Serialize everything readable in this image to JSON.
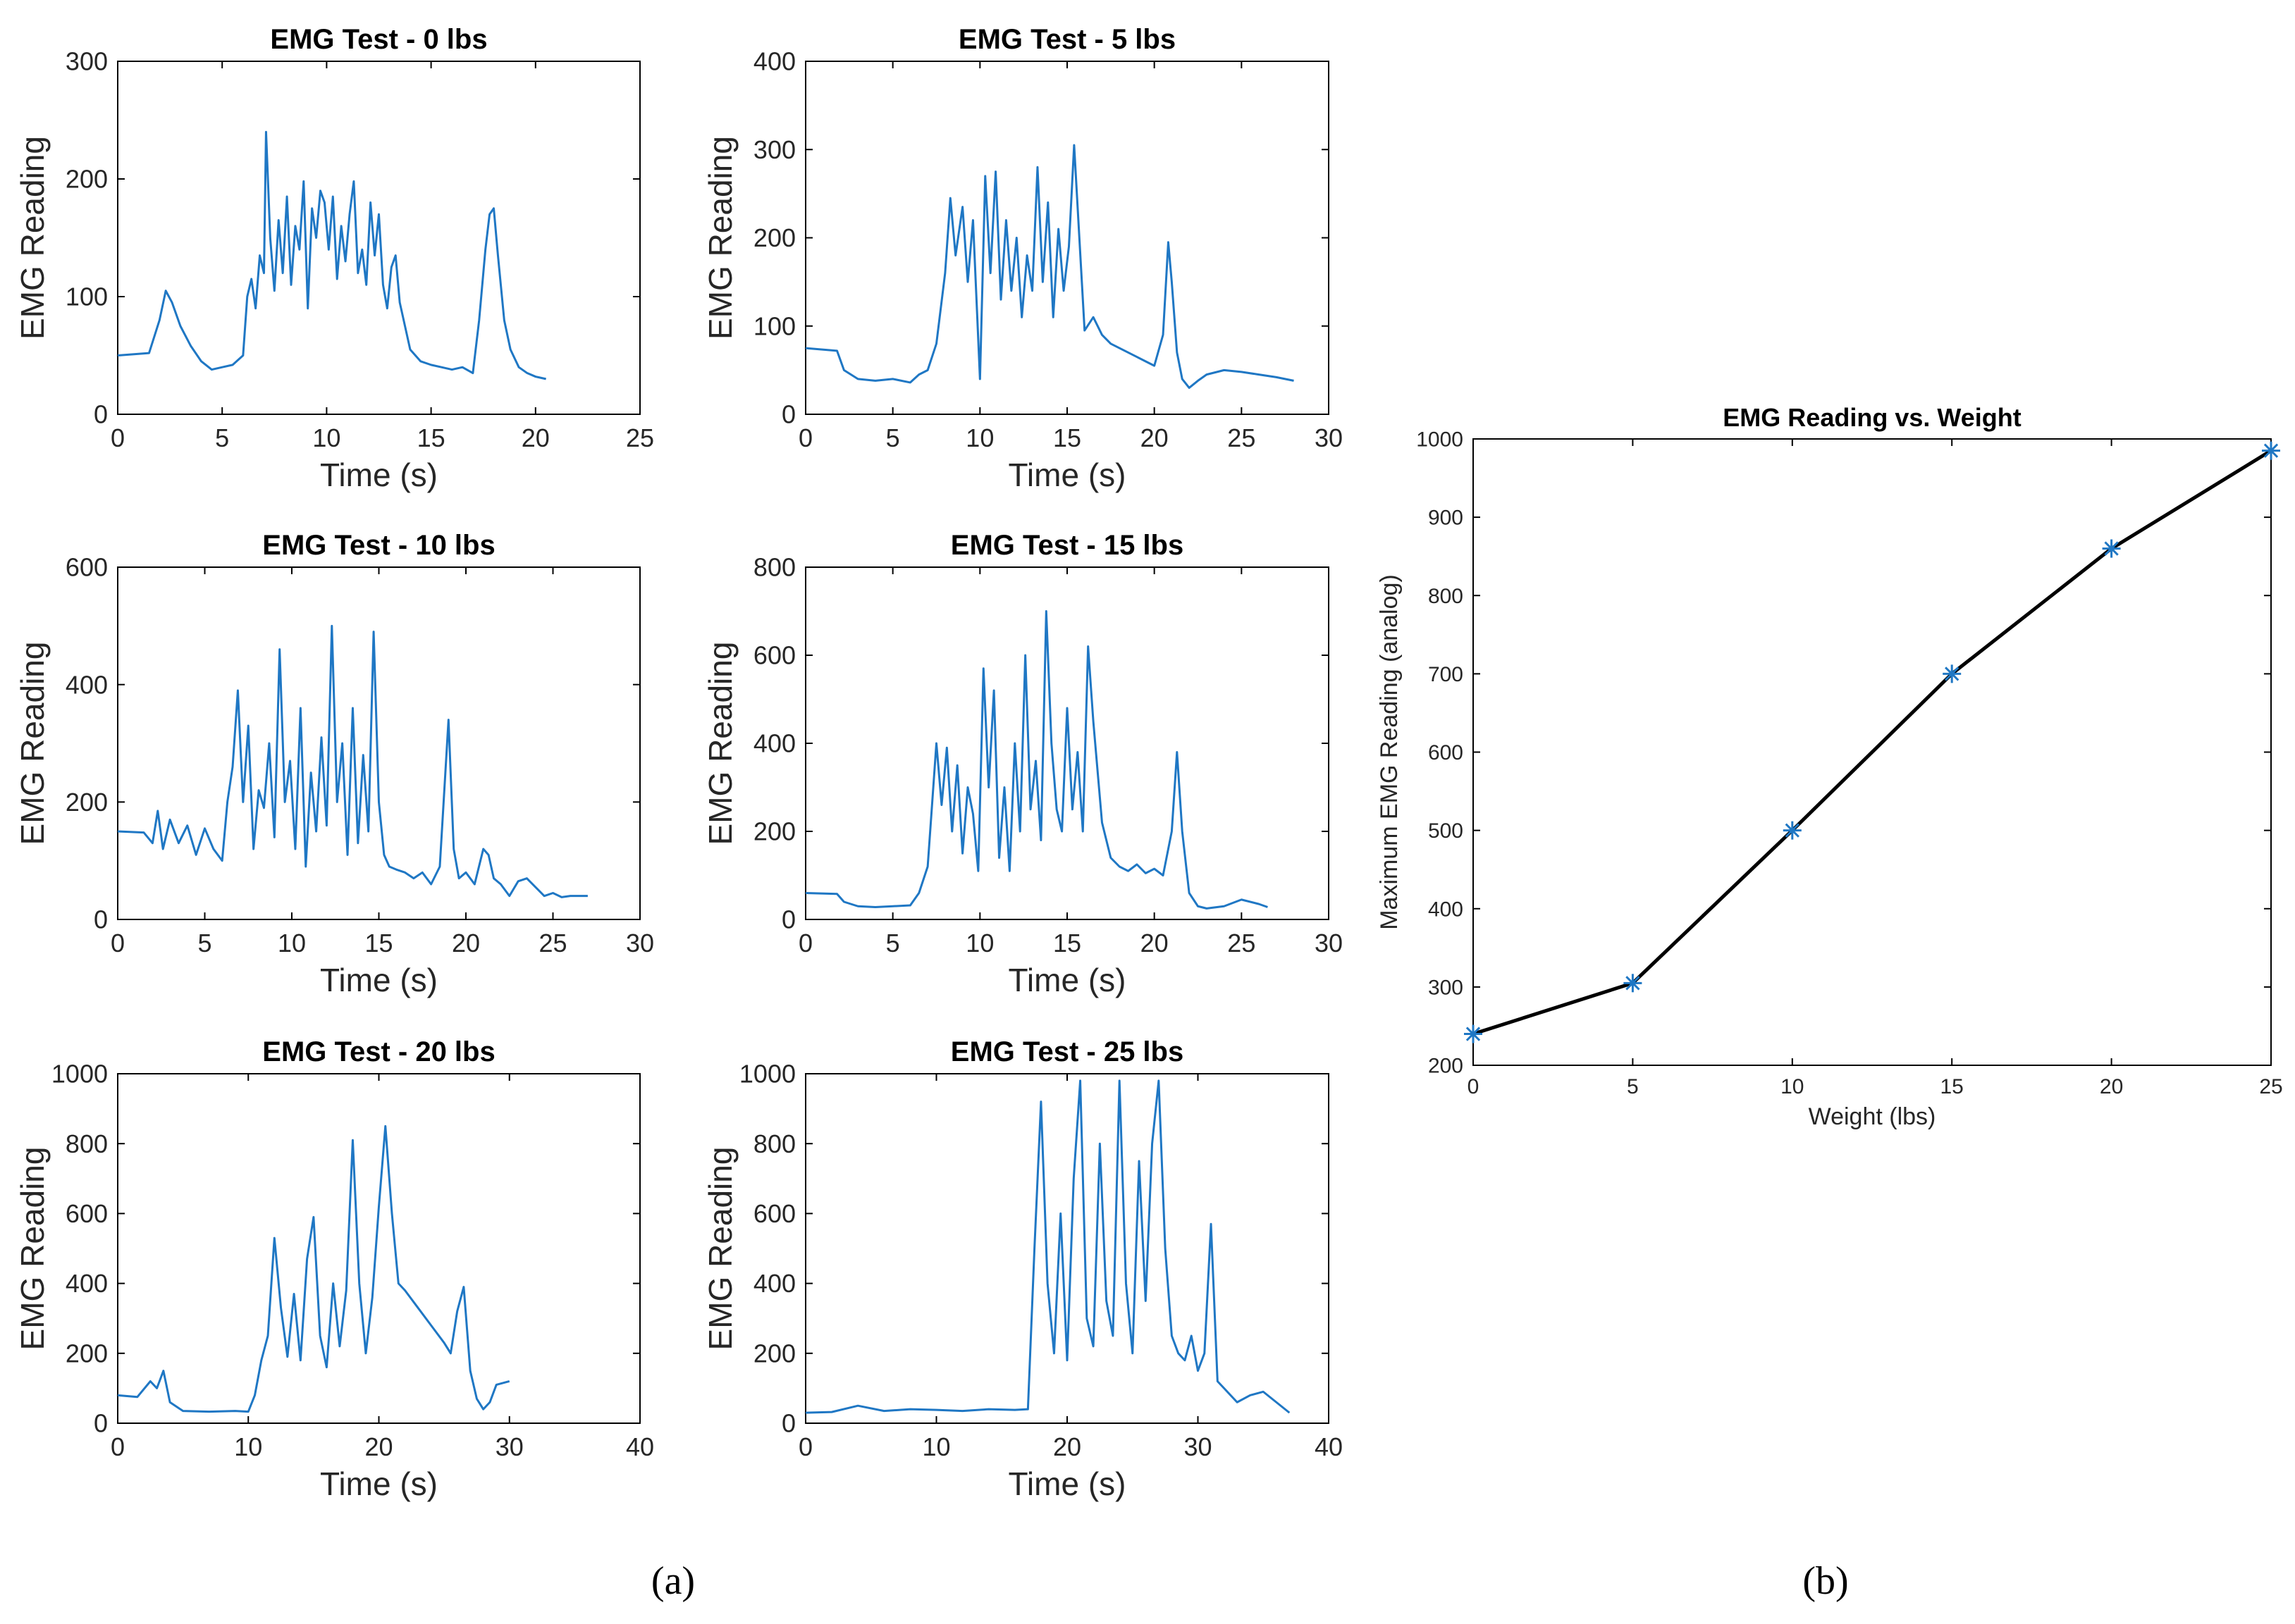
{
  "figure": {
    "panel_a_label": "(a)",
    "panel_b_label": "(b)"
  },
  "colors": {
    "series": "#1f77c4",
    "summary_line": "#000000",
    "axes": "#000000",
    "text": "#262626"
  },
  "chart_data": [
    {
      "id": "emg-0",
      "type": "line",
      "title": "EMG Test - 0 lbs",
      "xlabel": "Time (s)",
      "ylabel": "EMG Reading",
      "xlim": [
        0,
        25
      ],
      "ylim": [
        0,
        300
      ],
      "xticks": [
        0,
        5,
        10,
        15,
        20,
        25
      ],
      "yticks": [
        0,
        100,
        200,
        300
      ],
      "x": [
        0,
        1.5,
        2,
        2.3,
        2.6,
        3,
        3.5,
        4,
        4.5,
        5,
        5.5,
        6,
        6.2,
        6.4,
        6.6,
        6.8,
        7,
        7.1,
        7.3,
        7.5,
        7.7,
        7.9,
        8.1,
        8.3,
        8.5,
        8.7,
        8.9,
        9.1,
        9.3,
        9.5,
        9.7,
        9.9,
        10.1,
        10.3,
        10.5,
        10.7,
        10.9,
        11.1,
        11.3,
        11.5,
        11.7,
        11.9,
        12.1,
        12.3,
        12.5,
        12.7,
        12.9,
        13.1,
        13.3,
        13.5,
        14,
        14.5,
        15,
        15.5,
        16,
        16.5,
        17,
        17.3,
        17.6,
        17.8,
        18,
        18.2,
        18.5,
        18.8,
        19.2,
        19.6,
        20,
        20.5
      ],
      "values": [
        50,
        52,
        80,
        105,
        95,
        75,
        58,
        45,
        38,
        40,
        42,
        50,
        100,
        115,
        90,
        135,
        120,
        240,
        150,
        105,
        165,
        120,
        185,
        110,
        160,
        140,
        198,
        90,
        175,
        150,
        190,
        180,
        140,
        185,
        115,
        160,
        130,
        170,
        198,
        120,
        140,
        110,
        180,
        135,
        170,
        110,
        90,
        125,
        135,
        95,
        55,
        45,
        42,
        40,
        38,
        40,
        35,
        80,
        140,
        170,
        175,
        135,
        80,
        55,
        40,
        35,
        32,
        30
      ]
    },
    {
      "id": "emg-5",
      "type": "line",
      "title": "EMG Test - 5 lbs",
      "xlabel": "Time (s)",
      "ylabel": "EMG Reading",
      "xlim": [
        0,
        30
      ],
      "ylim": [
        0,
        400
      ],
      "xticks": [
        0,
        5,
        10,
        15,
        20,
        25,
        30
      ],
      "yticks": [
        0,
        100,
        200,
        300,
        400
      ],
      "x": [
        0,
        1.8,
        2.2,
        3,
        4,
        5,
        6,
        6.5,
        7,
        7.5,
        8,
        8.3,
        8.6,
        9,
        9.3,
        9.6,
        10,
        10.3,
        10.6,
        10.9,
        11.2,
        11.5,
        11.8,
        12.1,
        12.4,
        12.7,
        13,
        13.3,
        13.6,
        13.9,
        14.2,
        14.5,
        14.8,
        15.1,
        15.4,
        15.7,
        16,
        16.5,
        17,
        17.5,
        18,
        18.5,
        19,
        19.5,
        20,
        20.5,
        20.8,
        21,
        21.3,
        21.6,
        22,
        22.5,
        23,
        24,
        25,
        26,
        27,
        28
      ],
      "values": [
        75,
        72,
        50,
        40,
        38,
        40,
        36,
        45,
        50,
        80,
        160,
        245,
        180,
        235,
        150,
        220,
        40,
        270,
        160,
        275,
        130,
        220,
        140,
        200,
        110,
        180,
        140,
        280,
        150,
        240,
        110,
        210,
        140,
        190,
        305,
        200,
        95,
        110,
        90,
        80,
        75,
        70,
        65,
        60,
        55,
        90,
        195,
        150,
        70,
        40,
        30,
        38,
        45,
        50,
        48,
        45,
        42,
        38
      ]
    },
    {
      "id": "emg-10",
      "type": "line",
      "title": "EMG Test - 10 lbs",
      "xlabel": "Time (s)",
      "ylabel": "EMG Reading",
      "xlim": [
        0,
        30
      ],
      "ylim": [
        0,
        600
      ],
      "xticks": [
        0,
        5,
        10,
        15,
        20,
        25,
        30
      ],
      "yticks": [
        0,
        200,
        400,
        600
      ],
      "x": [
        0,
        1.5,
        2,
        2.3,
        2.6,
        3,
        3.5,
        4,
        4.5,
        5,
        5.5,
        6,
        6.3,
        6.6,
        6.9,
        7.2,
        7.5,
        7.8,
        8.1,
        8.4,
        8.7,
        9,
        9.3,
        9.6,
        9.9,
        10.2,
        10.5,
        10.8,
        11.1,
        11.4,
        11.7,
        12,
        12.3,
        12.6,
        12.9,
        13.2,
        13.5,
        13.8,
        14.1,
        14.4,
        14.7,
        15,
        15.3,
        15.6,
        16,
        16.5,
        17,
        17.5,
        18,
        18.5,
        19,
        19.3,
        19.6,
        20,
        20.5,
        21,
        21.3,
        21.6,
        22,
        22.5,
        23,
        23.5,
        24,
        24.5,
        25,
        25.5,
        26,
        27
      ],
      "values": [
        150,
        148,
        130,
        185,
        120,
        170,
        130,
        160,
        110,
        155,
        120,
        100,
        200,
        260,
        390,
        200,
        330,
        120,
        220,
        190,
        300,
        140,
        460,
        200,
        270,
        120,
        360,
        90,
        250,
        150,
        310,
        160,
        500,
        200,
        300,
        110,
        360,
        130,
        280,
        150,
        490,
        200,
        110,
        90,
        85,
        80,
        70,
        80,
        60,
        90,
        340,
        120,
        70,
        80,
        60,
        120,
        110,
        70,
        60,
        40,
        65,
        70,
        55,
        40,
        45,
        38,
        40,
        40
      ]
    },
    {
      "id": "emg-15",
      "type": "line",
      "title": "EMG Test - 15 lbs",
      "xlabel": "Time (s)",
      "ylabel": "EMG Reading",
      "xlim": [
        0,
        30
      ],
      "ylim": [
        0,
        800
      ],
      "xticks": [
        0,
        5,
        10,
        15,
        20,
        25,
        30
      ],
      "yticks": [
        0,
        200,
        400,
        600,
        800
      ],
      "x": [
        0,
        1.8,
        2.2,
        3,
        4,
        5,
        6,
        6.5,
        7,
        7.5,
        7.8,
        8.1,
        8.4,
        8.7,
        9,
        9.3,
        9.6,
        9.9,
        10.2,
        10.5,
        10.8,
        11.1,
        11.4,
        11.7,
        12,
        12.3,
        12.6,
        12.9,
        13.2,
        13.5,
        13.8,
        14.1,
        14.4,
        14.7,
        15,
        15.3,
        15.6,
        15.9,
        16.2,
        16.5,
        17,
        17.5,
        18,
        18.5,
        19,
        19.5,
        20,
        20.5,
        21,
        21.3,
        21.6,
        22,
        22.5,
        23,
        24,
        25,
        26,
        26.5
      ],
      "values": [
        60,
        58,
        40,
        30,
        28,
        30,
        32,
        60,
        120,
        400,
        260,
        390,
        200,
        350,
        150,
        300,
        240,
        110,
        570,
        300,
        520,
        140,
        300,
        110,
        400,
        200,
        600,
        250,
        360,
        180,
        700,
        400,
        250,
        200,
        480,
        250,
        380,
        200,
        620,
        450,
        220,
        140,
        120,
        110,
        125,
        105,
        115,
        100,
        200,
        380,
        200,
        60,
        30,
        25,
        30,
        45,
        35,
        28
      ]
    },
    {
      "id": "emg-20",
      "type": "line",
      "title": "EMG Test - 20 lbs",
      "xlabel": "Time (s)",
      "ylabel": "EMG Reading",
      "xlim": [
        0,
        40
      ],
      "ylim": [
        0,
        1000
      ],
      "xticks": [
        0,
        10,
        20,
        30,
        40
      ],
      "yticks": [
        0,
        200,
        400,
        600,
        800,
        1000
      ],
      "x": [
        0,
        1.5,
        2.5,
        3,
        3.5,
        4,
        5,
        7,
        9,
        10,
        10.5,
        11,
        11.5,
        12,
        12.5,
        13,
        13.5,
        14,
        14.5,
        15,
        15.5,
        16,
        16.5,
        17,
        17.5,
        18,
        18.5,
        19,
        19.5,
        20,
        20.5,
        21,
        21.5,
        22,
        23,
        24,
        25,
        25.5,
        26,
        26.5,
        27,
        27.5,
        28,
        28.5,
        29,
        30
      ],
      "values": [
        80,
        75,
        120,
        100,
        150,
        60,
        35,
        33,
        35,
        33,
        80,
        180,
        250,
        530,
        330,
        190,
        370,
        180,
        470,
        590,
        250,
        160,
        400,
        220,
        380,
        810,
        400,
        200,
        360,
        620,
        850,
        600,
        400,
        380,
        330,
        280,
        230,
        200,
        320,
        390,
        150,
        70,
        40,
        60,
        110,
        120
      ]
    },
    {
      "id": "emg-25",
      "type": "line",
      "title": "EMG Test - 25 lbs",
      "xlabel": "Time (s)",
      "ylabel": "EMG Reading",
      "xlim": [
        0,
        40
      ],
      "ylim": [
        0,
        1000
      ],
      "xticks": [
        0,
        10,
        20,
        30,
        40
      ],
      "yticks": [
        0,
        200,
        400,
        600,
        800,
        1000
      ],
      "x": [
        0,
        2,
        4,
        6,
        8,
        10,
        12,
        14,
        16,
        17,
        17.5,
        18,
        18.5,
        19,
        19.5,
        20,
        20.5,
        21,
        21.5,
        22,
        22.5,
        23,
        23.5,
        24,
        24.5,
        25,
        25.5,
        26,
        26.5,
        27,
        27.5,
        28,
        28.5,
        29,
        29.5,
        30,
        30.5,
        31,
        31.5,
        32,
        33,
        34,
        35,
        36,
        37
      ],
      "values": [
        30,
        32,
        50,
        35,
        40,
        38,
        35,
        40,
        38,
        40,
        500,
        920,
        400,
        200,
        600,
        180,
        700,
        980,
        300,
        220,
        800,
        350,
        250,
        980,
        400,
        200,
        750,
        350,
        800,
        980,
        500,
        250,
        200,
        180,
        250,
        150,
        200,
        570,
        120,
        100,
        60,
        80,
        90,
        60,
        30
      ]
    },
    {
      "id": "emg-vs-weight",
      "type": "line",
      "title": "EMG Reading vs. Weight",
      "xlabel": "Weight (lbs)",
      "ylabel": "Maximum EMG Reading (analog)",
      "xlim": [
        0,
        25
      ],
      "ylim": [
        200,
        1000
      ],
      "xticks": [
        0,
        5,
        10,
        15,
        20,
        25
      ],
      "yticks": [
        200,
        300,
        400,
        500,
        600,
        700,
        800,
        900,
        1000
      ],
      "marker": "*",
      "x": [
        0,
        5,
        10,
        15,
        20,
        25
      ],
      "values": [
        240,
        305,
        500,
        700,
        860,
        985
      ]
    }
  ]
}
